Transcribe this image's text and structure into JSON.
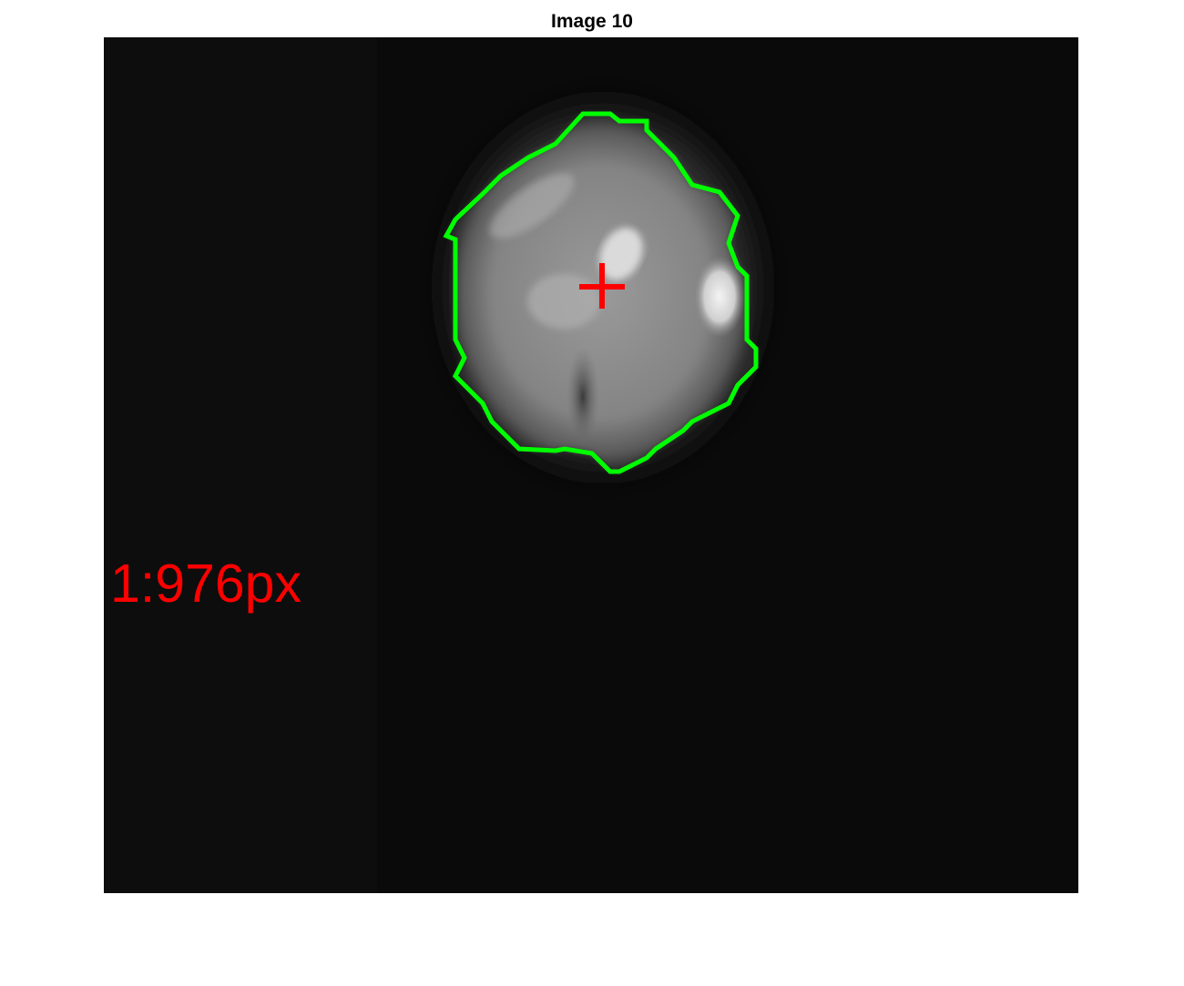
{
  "figure": {
    "title": "Image 10"
  },
  "annotation": {
    "label": "1:976px",
    "label_color": "#ff0000"
  },
  "overlay": {
    "contour_color": "#00ff00",
    "centroid_marker_color": "#ff0000",
    "centroid_marker": "plus-icon"
  },
  "image": {
    "colormap": "grayscale",
    "background_color": "#0a0a0a"
  }
}
